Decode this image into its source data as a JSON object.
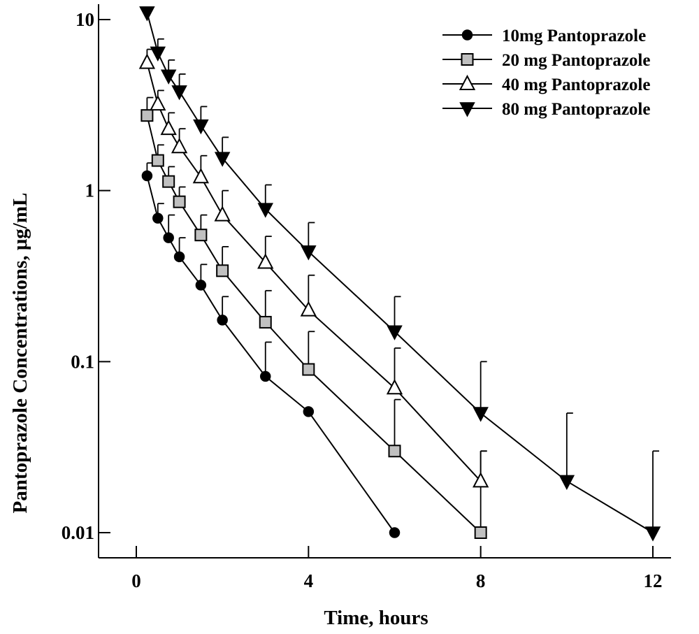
{
  "chart_data": {
    "type": "line",
    "title": "",
    "xlabel": "Time, hours",
    "ylabel": "Pantoprazole Concentrations, μg/mL",
    "xlim": [
      -1,
      12.5
    ],
    "ylim": [
      0.0065,
      11
    ],
    "y_scale": "log",
    "x_ticks": [
      0,
      4,
      8,
      12
    ],
    "x_tick_labels": [
      "0",
      "4",
      "8",
      "12"
    ],
    "y_ticks": [
      0.01,
      0.1,
      1,
      10
    ],
    "y_tick_labels": [
      "0.01",
      "0.1",
      "1",
      "10"
    ],
    "grid": false,
    "legend_position": "top-right",
    "series": [
      {
        "name": "10mg Pantoprazole",
        "marker": "filled-circle",
        "fill": "#000000",
        "x": [
          0.25,
          0.5,
          0.75,
          1,
          1.5,
          2,
          3,
          4,
          6
        ],
        "y": [
          1.22,
          0.69,
          0.53,
          0.41,
          0.28,
          0.175,
          0.082,
          0.051,
          0.01
        ],
        "error_upper": [
          1.45,
          0.84,
          0.72,
          0.53,
          0.37,
          0.24,
          0.13,
          null,
          null
        ]
      },
      {
        "name": "20 mg Pantoprazole",
        "marker": "gray-square",
        "fill": "#c0c0c0",
        "x": [
          0.25,
          0.5,
          0.75,
          1,
          1.5,
          2,
          3,
          4,
          6,
          8
        ],
        "y": [
          2.75,
          1.5,
          1.13,
          0.86,
          0.55,
          0.34,
          0.17,
          0.09,
          0.03,
          0.01
        ],
        "error_upper": [
          3.5,
          1.85,
          1.38,
          1.05,
          0.72,
          0.47,
          0.26,
          0.15,
          0.06,
          0.03
        ]
      },
      {
        "name": "40 mg Pantoprazole",
        "marker": "open-triangle-up",
        "fill": "#ffffff",
        "x": [
          0.25,
          0.5,
          0.75,
          1,
          1.5,
          2,
          3,
          4,
          6,
          8
        ],
        "y": [
          5.6,
          3.2,
          2.3,
          1.8,
          1.2,
          0.72,
          0.38,
          0.2,
          0.07,
          0.02
        ],
        "error_upper": [
          6.7,
          3.85,
          2.85,
          2.3,
          1.6,
          1.0,
          0.54,
          0.32,
          0.12,
          0.03
        ]
      },
      {
        "name": "80 mg Pantoprazole",
        "marker": "filled-triangle-down",
        "fill": "#000000",
        "x": [
          0.25,
          0.5,
          0.75,
          1,
          1.5,
          2,
          3,
          4,
          6,
          8,
          10,
          12
        ],
        "y": [
          11.0,
          6.4,
          4.7,
          3.8,
          2.4,
          1.55,
          0.78,
          0.44,
          0.15,
          0.05,
          0.02,
          0.01
        ],
        "error_upper": [
          null,
          7.7,
          5.8,
          4.8,
          3.1,
          2.05,
          1.08,
          0.65,
          0.24,
          0.1,
          0.05,
          0.03
        ]
      }
    ]
  }
}
